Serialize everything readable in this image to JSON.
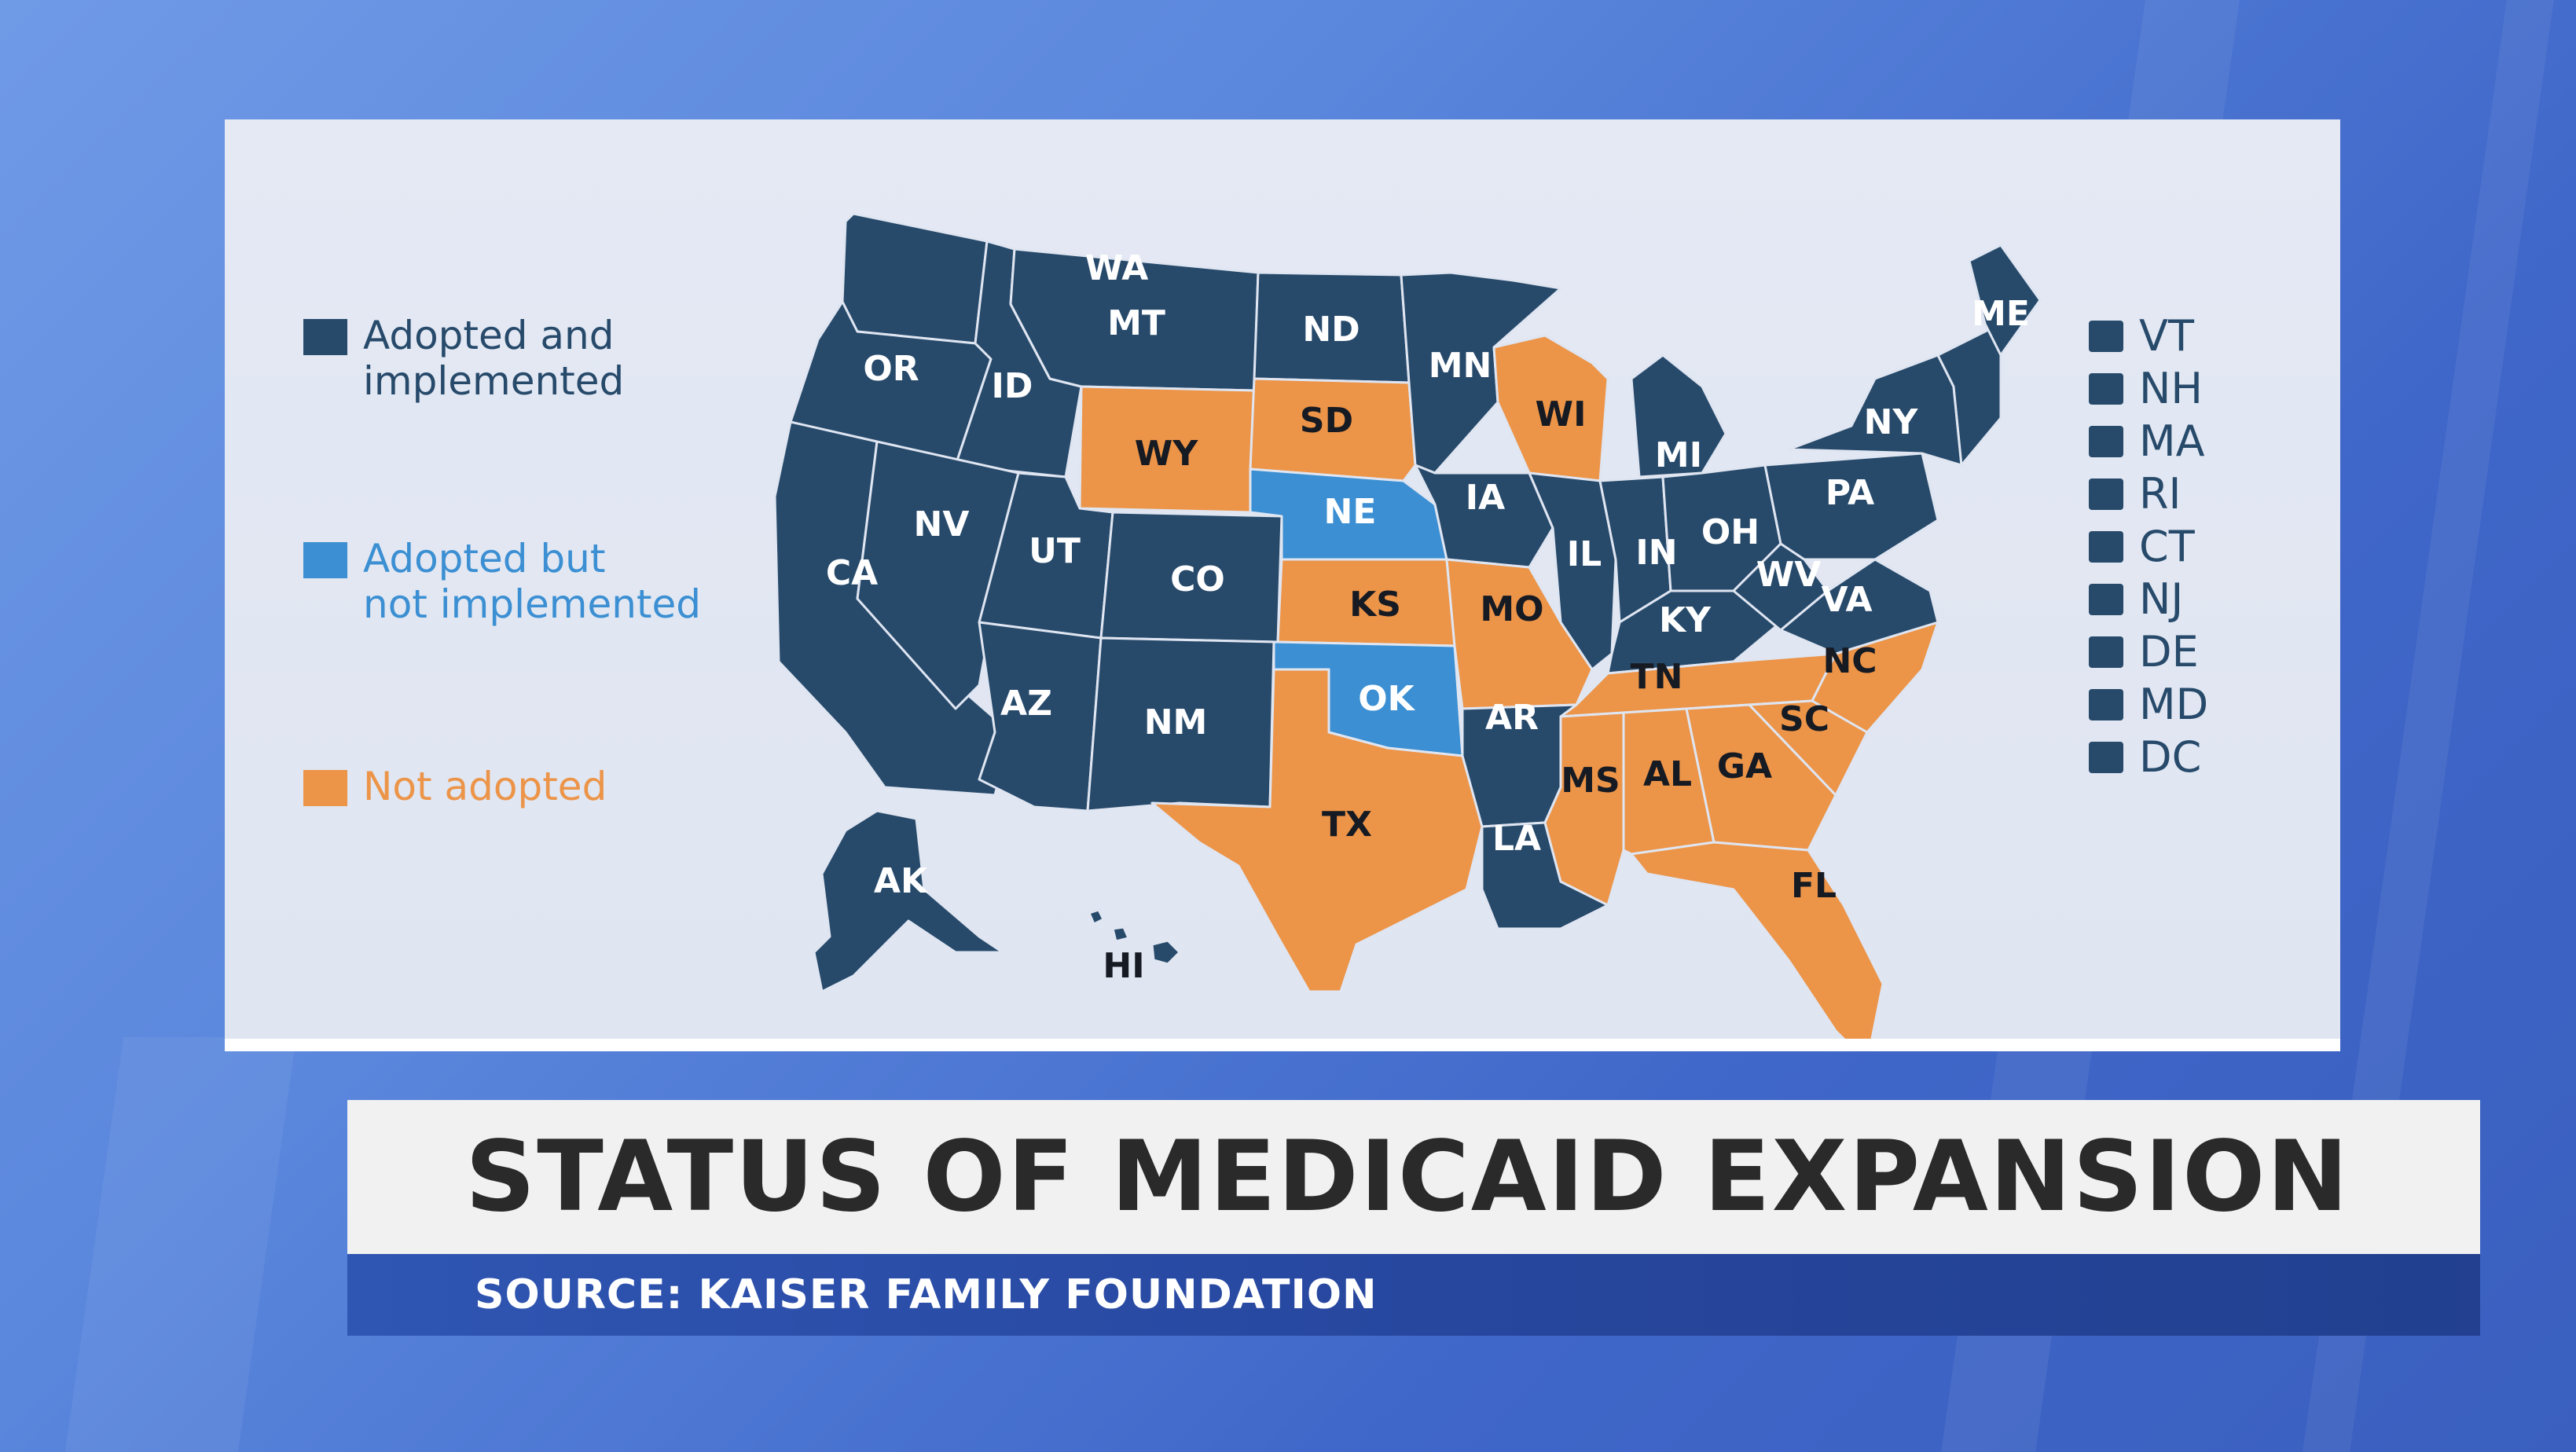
{
  "title": "STATUS OF MEDICAID EXPANSION",
  "source": "SOURCE: KAISER FAMILY FOUNDATION",
  "colors": {
    "adopted_implemented": "#274a6b",
    "adopted_not_implemented": "#3b8fd2",
    "not_adopted": "#ec9448"
  },
  "legend": [
    {
      "label": "Adopted and\nimplemented",
      "category": "adopted_implemented",
      "color": "#274a6b"
    },
    {
      "label": "Adopted but\nnot implemented",
      "category": "adopted_not_implemented",
      "color": "#3b8fd2"
    },
    {
      "label": "Not adopted",
      "category": "not_adopted",
      "color": "#ec9448"
    }
  ],
  "small_states": [
    "VT",
    "NH",
    "MA",
    "RI",
    "CT",
    "NJ",
    "DE",
    "MD",
    "DC"
  ],
  "states": {
    "WA": "adopted_implemented",
    "OR": "adopted_implemented",
    "CA": "adopted_implemented",
    "ID": "adopted_implemented",
    "NV": "adopted_implemented",
    "MT": "adopted_implemented",
    "WY": "not_adopted",
    "UT": "adopted_implemented",
    "AZ": "adopted_implemented",
    "CO": "adopted_implemented",
    "NM": "adopted_implemented",
    "ND": "adopted_implemented",
    "SD": "not_adopted",
    "NE": "adopted_not_implemented",
    "KS": "not_adopted",
    "OK": "adopted_not_implemented",
    "TX": "not_adopted",
    "MN": "adopted_implemented",
    "IA": "adopted_implemented",
    "MO": "not_adopted",
    "AR": "adopted_implemented",
    "LA": "adopted_implemented",
    "WI": "not_adopted",
    "IL": "adopted_implemented",
    "MI": "adopted_implemented",
    "IN": "adopted_implemented",
    "OH": "adopted_implemented",
    "KY": "adopted_implemented",
    "TN": "not_adopted",
    "MS": "not_adopted",
    "AL": "not_adopted",
    "GA": "not_adopted",
    "FL": "not_adopted",
    "SC": "not_adopted",
    "NC": "not_adopted",
    "VA": "adopted_implemented",
    "WV": "adopted_implemented",
    "PA": "adopted_implemented",
    "NY": "adopted_implemented",
    "ME": "adopted_implemented",
    "AK": "adopted_implemented",
    "HI": "adopted_implemented"
  }
}
